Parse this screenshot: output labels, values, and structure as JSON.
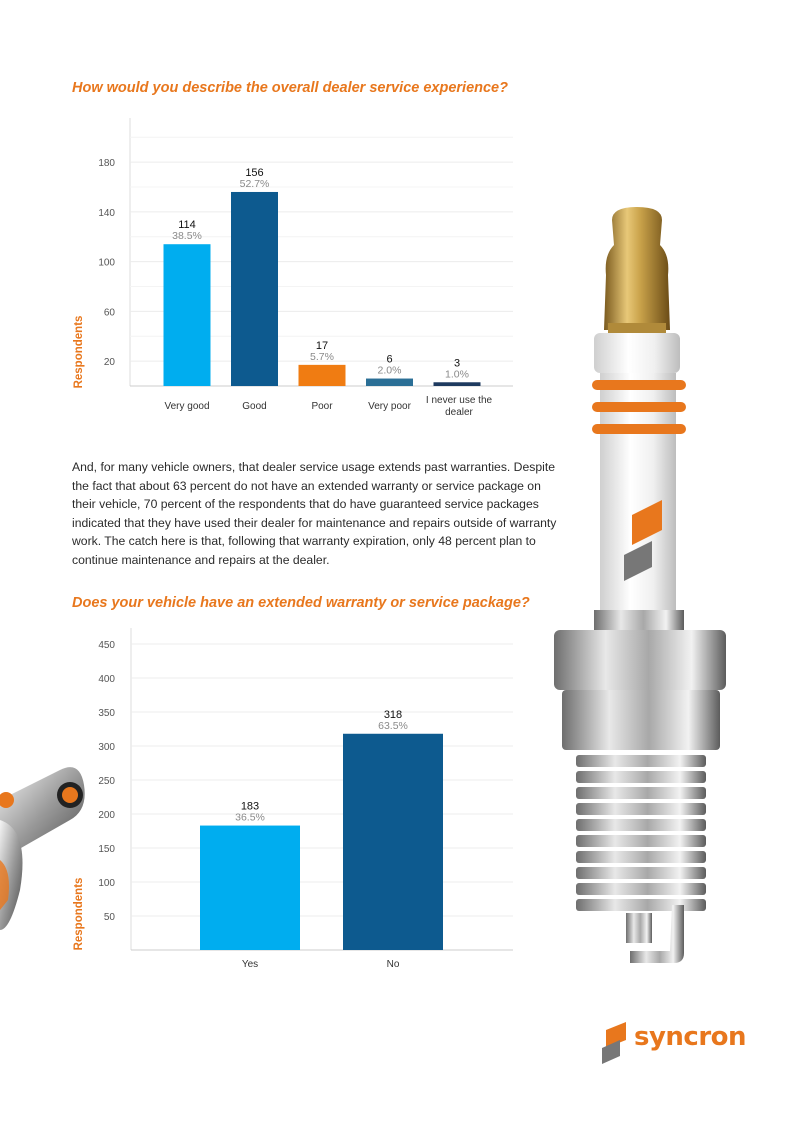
{
  "paragraph": "And, for many vehicle owners, that dealer service usage extends past warranties. Despite the fact that about 63 percent do not have an extended warranty or service package on their vehicle, 70 percent of the respondents that do have guaranteed service packages indicated that they have used their dealer for maintenance and repairs outside of warranty work. The catch here is that, following that warranty expiration, only 48 percent plan to continue maintenance and repairs at the dealer.",
  "logo": {
    "text": "syncron"
  },
  "colors": {
    "accent_orange": "#e8771d",
    "light_blue": "#00adef",
    "dark_blue": "#0d5a8f",
    "steel_blue": "#2b6f96",
    "navy": "#1e3a5f",
    "axis_label": "#e8771d"
  },
  "chart_data": [
    {
      "type": "bar",
      "title": "How would you describe the overall dealer service experience?",
      "ylabel": "Respondents",
      "xlabel": "",
      "categories": [
        "Very good",
        "Good",
        "Poor",
        "Very poor",
        "I never use the dealer"
      ],
      "category_lines": [
        [
          "Very good"
        ],
        [
          "Good"
        ],
        [
          "Poor"
        ],
        [
          "Very poor"
        ],
        [
          "I never use the",
          "dealer"
        ]
      ],
      "values": [
        114,
        156,
        17,
        6,
        3
      ],
      "percent_labels": [
        "38.5%",
        "52.7%",
        "5.7%",
        "2.0%",
        "1.0%"
      ],
      "bar_colors": [
        "#00adef",
        "#0d5a8f",
        "#f07c12",
        "#2b6f96",
        "#1e3a5f"
      ],
      "yticks": [
        20,
        60,
        100,
        140,
        180
      ],
      "ylim": [
        0,
        200
      ],
      "grid": true,
      "legend": "none"
    },
    {
      "type": "bar",
      "title": "Does your vehicle have an extended warranty or service package?",
      "ylabel": "Respondents",
      "xlabel": "",
      "categories": [
        "Yes",
        "No"
      ],
      "category_lines": [
        [
          "Yes"
        ],
        [
          "No"
        ]
      ],
      "values": [
        183,
        318
      ],
      "percent_labels": [
        "36.5%",
        "63.5%"
      ],
      "bar_colors": [
        "#00adef",
        "#0d5a8f"
      ],
      "yticks": [
        50,
        100,
        150,
        200,
        250,
        300,
        350,
        400,
        450
      ],
      "ylim": [
        0,
        450
      ],
      "grid": true,
      "legend": "none"
    }
  ]
}
